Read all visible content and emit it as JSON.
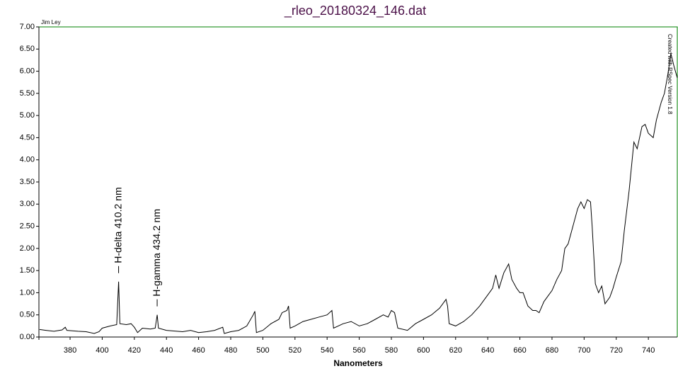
{
  "chart_data": {
    "type": "line",
    "title": "_rleo_20180324_146.dat",
    "x_label": "Nanometers",
    "author": "Jim Ley",
    "credit": "Created with RSpec Version 1.8",
    "color": "#000000",
    "frame_color": "#008000",
    "title_color": "#4b1048",
    "annotations": [
      {
        "text": "H-delta 410.2 nm",
        "x": 410.2,
        "y": 1.25
      },
      {
        "text": "H-gamma 434.2 nm",
        "x": 434.2,
        "y": 0.5
      }
    ],
    "x": [
      361,
      365,
      370,
      375,
      377,
      378,
      385,
      390,
      395,
      398,
      400,
      405,
      409,
      410.2,
      411,
      415,
      418,
      420,
      422,
      425,
      430,
      433,
      434.2,
      435,
      440,
      450,
      455,
      460,
      465,
      470,
      475,
      476,
      480,
      485,
      490,
      494,
      495,
      496,
      500,
      505,
      510,
      512,
      515,
      516,
      517,
      520,
      525,
      530,
      535,
      540,
      543,
      544,
      550,
      555,
      560,
      565,
      570,
      575,
      578,
      580,
      582,
      584,
      590,
      595,
      600,
      605,
      610,
      614,
      615,
      616,
      620,
      625,
      630,
      635,
      638,
      640,
      643,
      645,
      647,
      650,
      653,
      655,
      658,
      660,
      662,
      665,
      668,
      670,
      672,
      675,
      678,
      680,
      683,
      686,
      688,
      690,
      693,
      696,
      698,
      700,
      702,
      704,
      705,
      707,
      709,
      711,
      713,
      716,
      718,
      720,
      723,
      725,
      728,
      731,
      733,
      736,
      738,
      740,
      743,
      745,
      748,
      750,
      752,
      754,
      756,
      758
    ],
    "values": [
      0.17,
      0.15,
      0.13,
      0.16,
      0.22,
      0.15,
      0.13,
      0.12,
      0.08,
      0.12,
      0.2,
      0.25,
      0.28,
      1.25,
      0.3,
      0.28,
      0.3,
      0.22,
      0.1,
      0.2,
      0.18,
      0.2,
      0.5,
      0.2,
      0.15,
      0.12,
      0.15,
      0.1,
      0.12,
      0.15,
      0.22,
      0.08,
      0.12,
      0.15,
      0.25,
      0.5,
      0.58,
      0.1,
      0.15,
      0.3,
      0.4,
      0.55,
      0.6,
      0.7,
      0.2,
      0.25,
      0.35,
      0.4,
      0.45,
      0.5,
      0.6,
      0.2,
      0.3,
      0.35,
      0.25,
      0.3,
      0.4,
      0.5,
      0.45,
      0.6,
      0.55,
      0.2,
      0.15,
      0.3,
      0.4,
      0.5,
      0.65,
      0.85,
      0.7,
      0.3,
      0.25,
      0.35,
      0.5,
      0.7,
      0.85,
      0.95,
      1.1,
      1.4,
      1.1,
      1.45,
      1.65,
      1.3,
      1.1,
      1.0,
      1.0,
      0.7,
      0.6,
      0.6,
      0.55,
      0.8,
      0.95,
      1.05,
      1.3,
      1.5,
      2.0,
      2.1,
      2.5,
      2.9,
      3.05,
      2.9,
      3.1,
      3.05,
      2.5,
      1.2,
      1.0,
      1.15,
      0.75,
      0.9,
      1.1,
      1.35,
      1.7,
      2.4,
      3.3,
      4.4,
      4.25,
      4.75,
      4.8,
      4.6,
      4.5,
      4.9,
      5.3,
      5.5,
      5.9,
      6.4,
      6.1,
      5.85
    ],
    "xlim": [
      360.6,
      758
    ],
    "xticks": [
      380,
      400,
      420,
      440,
      460,
      480,
      500,
      520,
      540,
      560,
      580,
      600,
      620,
      640,
      660,
      680,
      700,
      720,
      740
    ],
    "ylim": [
      0,
      7
    ],
    "yticks": [
      {
        "value": 0,
        "label": "0.00"
      },
      {
        "value": 0.5,
        "label": "0.50"
      },
      {
        "value": 1,
        "label": "1.00"
      },
      {
        "value": 1.5,
        "label": "1.50"
      },
      {
        "value": 2,
        "label": "2.00"
      },
      {
        "value": 2.5,
        "label": "2.50"
      },
      {
        "value": 3,
        "label": "3.00"
      },
      {
        "value": 3.5,
        "label": "3.50"
      },
      {
        "value": 4,
        "label": "4.00"
      },
      {
        "value": 4.5,
        "label": "4.50"
      },
      {
        "value": 5,
        "label": "5.00"
      },
      {
        "value": 5.5,
        "label": "5.50"
      },
      {
        "value": 6,
        "label": "6.00"
      },
      {
        "value": 6.5,
        "label": "6.50"
      },
      {
        "value": 7,
        "label": "7.00"
      }
    ]
  }
}
